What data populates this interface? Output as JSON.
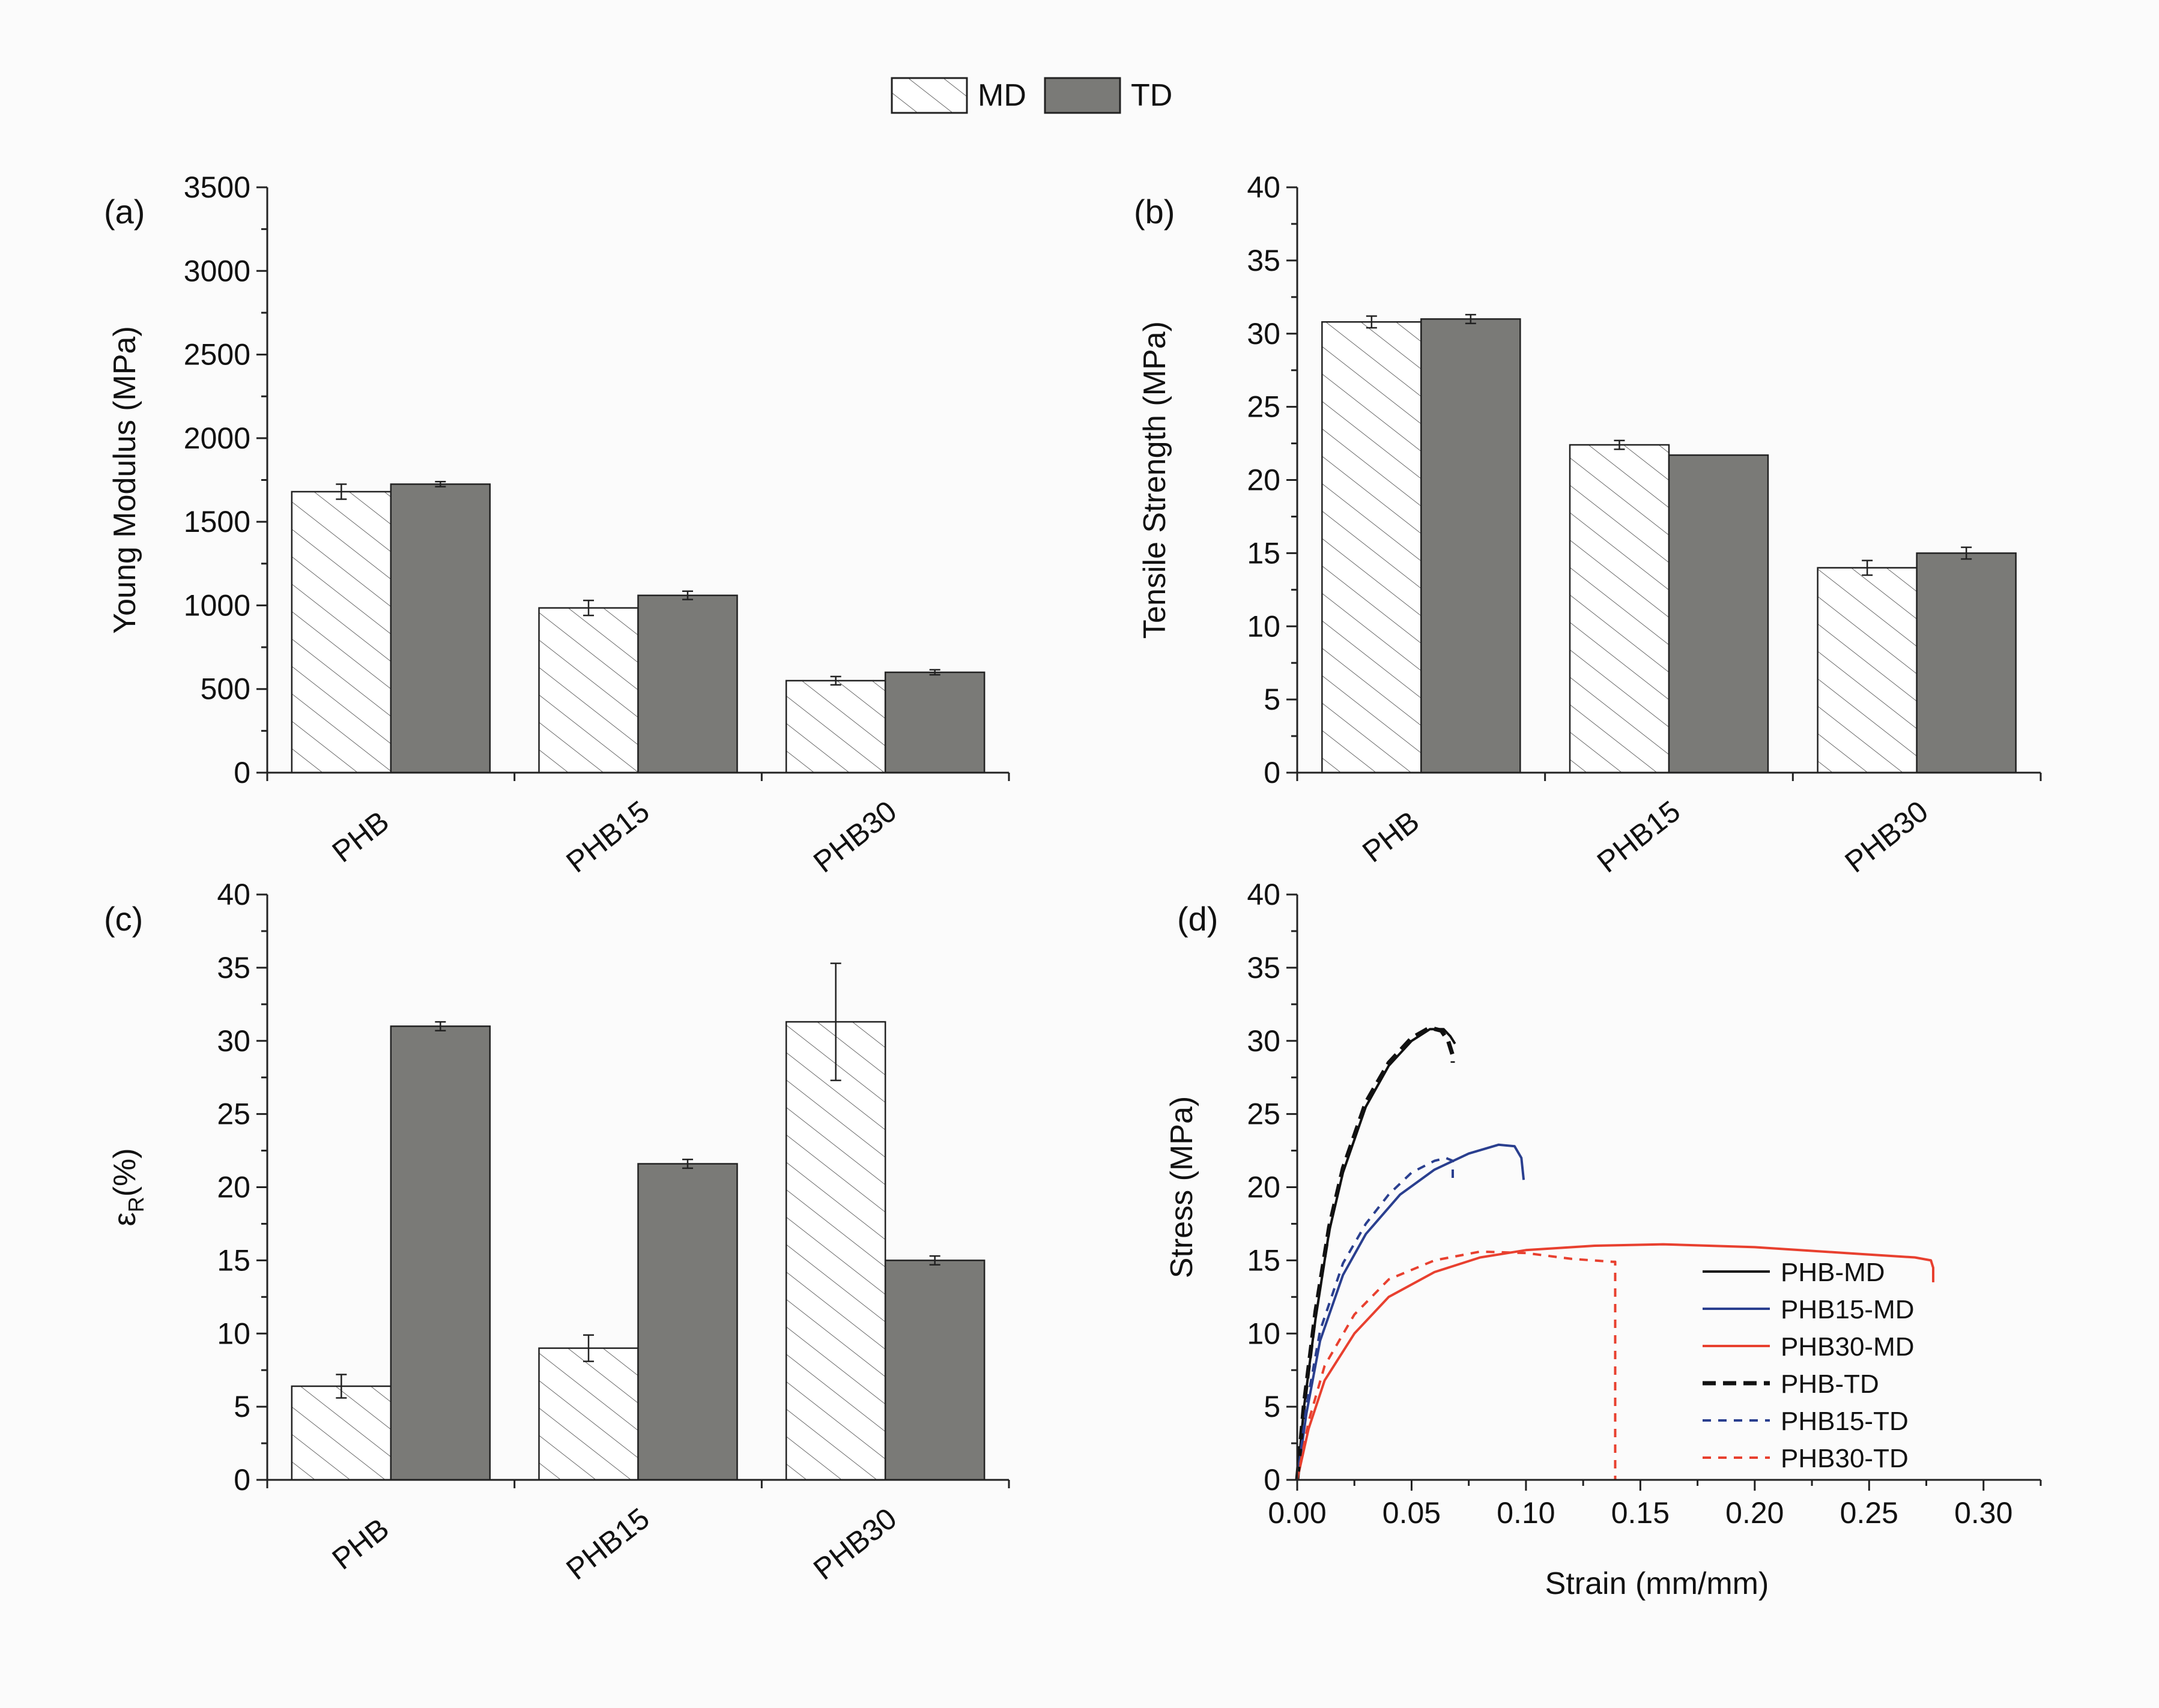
{
  "legend": {
    "items": [
      {
        "label": "MD",
        "pattern": "hatch"
      },
      {
        "label": "TD",
        "color": "#7a7a77"
      }
    ]
  },
  "colors": {
    "md_fill": "#ffffff",
    "td_fill": "#7a7a77",
    "hatch": "#555555",
    "axis": "#222222",
    "black": "#111111",
    "blue": "#2a3f8f",
    "red": "#e8402f"
  },
  "chart_data": [
    {
      "id": "a",
      "type": "bar",
      "panel_label": "(a)",
      "ylabel": "Young Modulus (MPa)",
      "xlabel": "",
      "categories": [
        "PHB",
        "PHB15",
        "PHB30"
      ],
      "ylim": [
        0,
        3500
      ],
      "yticks": [
        0,
        500,
        1000,
        1500,
        2000,
        2500,
        3000,
        3500
      ],
      "series": [
        {
          "name": "MD",
          "values": [
            1680,
            985,
            550
          ],
          "errors": [
            45,
            45,
            25
          ]
        },
        {
          "name": "TD",
          "values": [
            1725,
            1060,
            600
          ],
          "errors": [
            15,
            25,
            15
          ]
        }
      ]
    },
    {
      "id": "b",
      "type": "bar",
      "panel_label": "(b)",
      "ylabel": "Tensile Strength (MPa)",
      "xlabel": "",
      "categories": [
        "PHB",
        "PHB15",
        "PHB30"
      ],
      "ylim": [
        0,
        40
      ],
      "yticks": [
        0,
        5,
        10,
        15,
        20,
        25,
        30,
        35,
        40
      ],
      "series": [
        {
          "name": "MD",
          "values": [
            30.8,
            22.4,
            14.0
          ],
          "errors": [
            0.4,
            0.3,
            0.5
          ]
        },
        {
          "name": "TD",
          "values": [
            31.0,
            21.7,
            15.0
          ],
          "errors": [
            0.3,
            0.0,
            0.4
          ]
        }
      ]
    },
    {
      "id": "c",
      "type": "bar",
      "panel_label": "(c)",
      "ylabel_main": "ε",
      "ylabel_sub": "R",
      "ylabel_rest": "(%)",
      "xlabel": "",
      "categories": [
        "PHB",
        "PHB15",
        "PHB30"
      ],
      "ylim": [
        0,
        40
      ],
      "yticks": [
        0,
        5,
        10,
        15,
        20,
        25,
        30,
        35,
        40
      ],
      "series": [
        {
          "name": "MD",
          "values": [
            6.4,
            9.0,
            31.3
          ],
          "errors": [
            0.8,
            0.9,
            4.0
          ]
        },
        {
          "name": "TD",
          "values": [
            31.0,
            21.6,
            15.0
          ],
          "errors": [
            0.3,
            0.3,
            0.3
          ]
        }
      ]
    },
    {
      "id": "d",
      "type": "line",
      "panel_label": "(d)",
      "xlabel": "Strain (mm/mm)",
      "ylabel": "Stress (MPa)",
      "xlim": [
        0,
        0.325
      ],
      "ylim": [
        0,
        40
      ],
      "xticks": [
        0.0,
        0.05,
        0.1,
        0.15,
        0.2,
        0.25,
        0.3
      ],
      "xtick_labels": [
        "0.00",
        "0.05",
        "0.10",
        "0.15",
        "0.20",
        "0.25",
        "0.30"
      ],
      "yticks": [
        0,
        5,
        10,
        15,
        20,
        25,
        30,
        35,
        40
      ],
      "series": [
        {
          "name": "PHB-MD",
          "color": "#111111",
          "dash": "solid",
          "x": [
            0,
            0.003,
            0.008,
            0.014,
            0.02,
            0.03,
            0.04,
            0.05,
            0.058,
            0.064,
            0.067,
            0.069
          ],
          "y": [
            0,
            5,
            11,
            17,
            21,
            25.5,
            28.3,
            30.0,
            30.8,
            30.8,
            30.3,
            29.8
          ]
        },
        {
          "name": "PHB15-MD",
          "color": "#2a3f8f",
          "dash": "solid",
          "x": [
            0,
            0.004,
            0.01,
            0.02,
            0.03,
            0.045,
            0.06,
            0.075,
            0.088,
            0.095,
            0.098,
            0.099
          ],
          "y": [
            0,
            4.5,
            9.5,
            14.0,
            16.8,
            19.5,
            21.2,
            22.3,
            22.9,
            22.8,
            22.0,
            20.5
          ]
        },
        {
          "name": "PHB30-MD",
          "color": "#e8402f",
          "dash": "solid",
          "x": [
            0,
            0.005,
            0.012,
            0.025,
            0.04,
            0.06,
            0.08,
            0.1,
            0.13,
            0.16,
            0.2,
            0.24,
            0.27,
            0.277,
            0.278,
            0.278
          ],
          "y": [
            0,
            3.5,
            6.8,
            10.0,
            12.5,
            14.2,
            15.2,
            15.7,
            16.0,
            16.1,
            15.9,
            15.5,
            15.2,
            15.0,
            14.5,
            13.5
          ]
        },
        {
          "name": "PHB-TD",
          "color": "#111111",
          "dash": "long",
          "x": [
            0,
            0.003,
            0.008,
            0.014,
            0.02,
            0.03,
            0.04,
            0.05,
            0.058,
            0.063,
            0.066,
            0.068,
            0.068
          ],
          "y": [
            0,
            5.2,
            11.5,
            17.3,
            21.3,
            25.8,
            28.5,
            30.2,
            30.9,
            30.7,
            30.0,
            29.0,
            28.5
          ]
        },
        {
          "name": "PHB15-TD",
          "color": "#2a3f8f",
          "dash": "short",
          "x": [
            0,
            0.004,
            0.01,
            0.02,
            0.03,
            0.04,
            0.05,
            0.06,
            0.065,
            0.068,
            0.068
          ],
          "y": [
            0,
            5.0,
            10.2,
            14.8,
            17.5,
            19.5,
            21.0,
            21.8,
            22.0,
            21.8,
            20.5
          ]
        },
        {
          "name": "PHB30-TD",
          "color": "#e8402f",
          "dash": "short",
          "x": [
            0,
            0.005,
            0.012,
            0.025,
            0.04,
            0.06,
            0.08,
            0.1,
            0.12,
            0.138,
            0.139,
            0.139
          ],
          "y": [
            0,
            4.0,
            7.8,
            11.3,
            13.7,
            15.0,
            15.6,
            15.5,
            15.1,
            14.9,
            14.9,
            0
          ]
        }
      ]
    }
  ]
}
